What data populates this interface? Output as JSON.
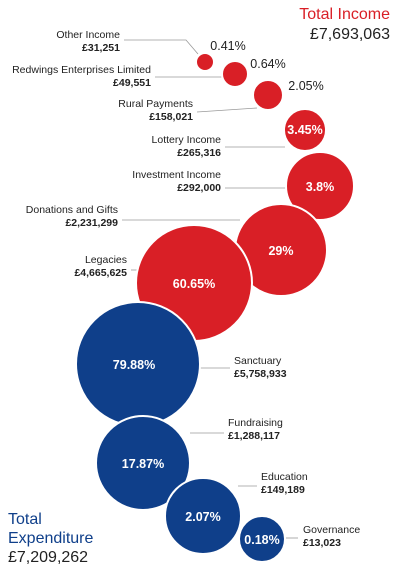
{
  "colors": {
    "income": "#d91f26",
    "expenditure": "#0f3f8a"
  },
  "income_header": {
    "title": "Total Income",
    "total": "£7,693,063"
  },
  "expenditure_header": {
    "title": "Total Expenditure",
    "total": "£7,209,262"
  },
  "chart_data": [
    {
      "type": "bubble",
      "group": "Income",
      "title": "Total Income",
      "total": "£7,693,063",
      "items": [
        {
          "name": "Other Income",
          "amount": "£31,251",
          "value": 31251,
          "percent": "0.41%"
        },
        {
          "name": "Redwings Enterprises Limited",
          "amount": "£49,551",
          "value": 49551,
          "percent": "0.64%"
        },
        {
          "name": "Rural Payments",
          "amount": "£158,021",
          "value": 158021,
          "percent": "2.05%"
        },
        {
          "name": "Lottery Income",
          "amount": "£265,316",
          "value": 265316,
          "percent": "3.45%"
        },
        {
          "name": "Investment Income",
          "amount": "£292,000",
          "value": 292000,
          "percent": "3.8%"
        },
        {
          "name": "Donations and Gifts",
          "amount": "£2,231,299",
          "value": 2231299,
          "percent": "29%"
        },
        {
          "name": "Legacies",
          "amount": "£4,665,625",
          "value": 4665625,
          "percent": "60.65%"
        }
      ]
    },
    {
      "type": "bubble",
      "group": "Expenditure",
      "title": "Total Expenditure",
      "total": "£7,209,262",
      "items": [
        {
          "name": "Sanctuary",
          "amount": "£5,758,933",
          "value": 5758933,
          "percent": "79.88%"
        },
        {
          "name": "Fundraising",
          "amount": "£1,288,117",
          "value": 1288117,
          "percent": "17.87%"
        },
        {
          "name": "Education",
          "amount": "£149,189",
          "value": 149189,
          "percent": "2.07%"
        },
        {
          "name": "Governance",
          "amount": "£13,023",
          "value": 13023,
          "percent": "0.18%"
        }
      ]
    }
  ]
}
